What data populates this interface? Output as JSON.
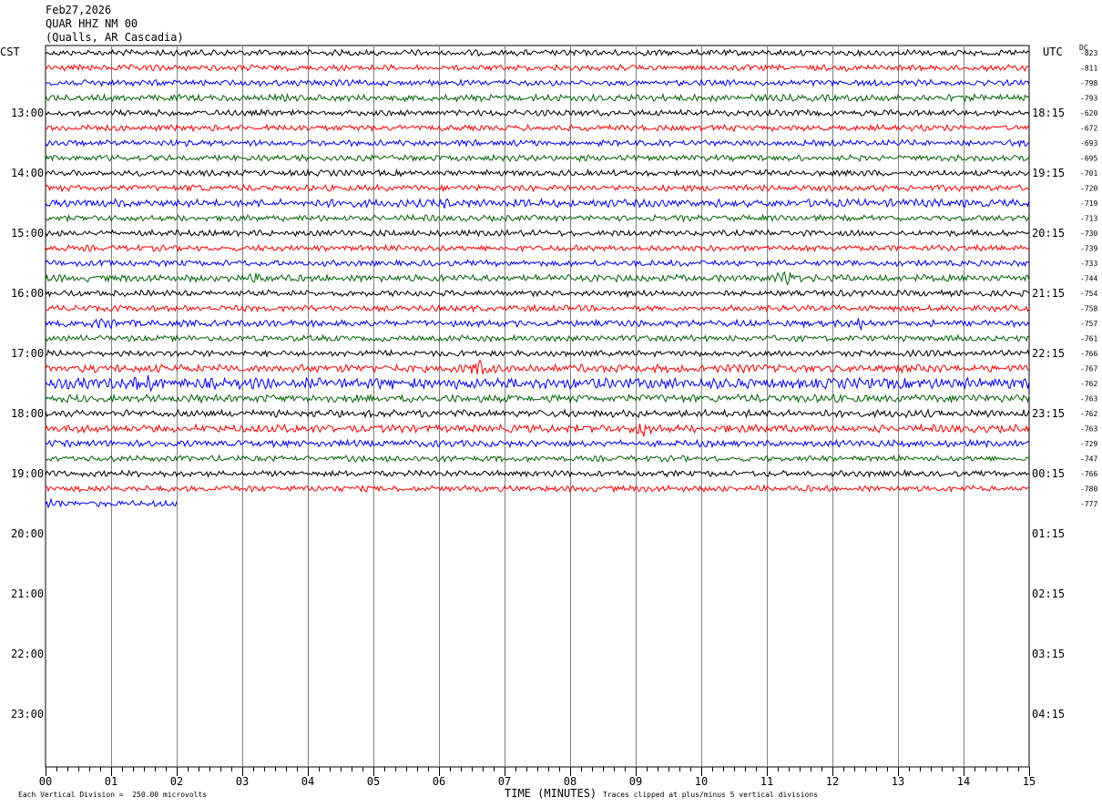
{
  "header": {
    "date": "Feb27,2026",
    "station": "QUAR HHZ NM 00",
    "location": "(Qualls, AR Cascadia)"
  },
  "left_timezone": "CST",
  "right_timezone": "UTC",
  "dc_label": "DC",
  "chart_data": {
    "type": "line",
    "title": "",
    "xlabel": "TIME (MINUTES)",
    "xlim": [
      0,
      15
    ],
    "x_ticks": [
      "00",
      "01",
      "02",
      "03",
      "04",
      "05",
      "06",
      "07",
      "08",
      "09",
      "10",
      "11",
      "12",
      "13",
      "14",
      "15"
    ],
    "left_hour_labels": [
      "13:00",
      "14:00",
      "15:00",
      "16:00",
      "17:00",
      "18:00",
      "19:00",
      "20:00",
      "21:00",
      "22:00",
      "23:00"
    ],
    "right_hour_labels": [
      "18:15",
      "19:15",
      "20:15",
      "21:15",
      "22:15",
      "23:15",
      "00:15",
      "01:15",
      "02:15",
      "03:15",
      "04:15"
    ],
    "first_left_label_row": 4,
    "rows_per_hour": 4,
    "total_rows": 48,
    "trace_colors": [
      "#000000",
      "#ff0000",
      "#0000ff",
      "#006400"
    ],
    "dc_offsets": [
      "-823",
      "-811",
      "-798",
      "-793",
      "-620",
      "-672",
      "-693",
      "-695",
      "-701",
      "-720",
      "-719",
      "-713",
      "-730",
      "-739",
      "-733",
      "-744",
      "-754",
      "-758",
      "-757",
      "-761",
      "-766",
      "-767",
      "-762",
      "-763",
      "-762",
      "-763",
      "-729",
      "-747",
      "-766",
      "-780",
      "-777"
    ],
    "trace_amplitudes": [
      1.0,
      1.0,
      1.0,
      1.1,
      1.0,
      1.0,
      1.0,
      1.0,
      1.0,
      1.0,
      1.3,
      1.0,
      1.0,
      1.0,
      1.0,
      1.2,
      1.0,
      1.0,
      1.1,
      1.0,
      1.0,
      1.3,
      1.8,
      1.3,
      1.2,
      1.3,
      1.1,
      1.0,
      1.0,
      1.0,
      1.0
    ],
    "last_trace_end_minute": 2.0,
    "events": [
      {
        "row": 14,
        "minute": 0.9,
        "amp": 1.5
      },
      {
        "row": 15,
        "minute": 3.3,
        "amp": 1.8
      },
      {
        "row": 15,
        "minute": 11.3,
        "amp": 2.2
      },
      {
        "row": 9,
        "minute": 2.3,
        "amp": 1.5
      },
      {
        "row": 10,
        "minute": 6.1,
        "amp": 1.8
      },
      {
        "row": 18,
        "minute": 0.9,
        "amp": 2.0
      },
      {
        "row": 18,
        "minute": 12.4,
        "amp": 1.8
      },
      {
        "row": 21,
        "minute": 6.6,
        "amp": 3.0
      },
      {
        "row": 22,
        "minute": 1.5,
        "amp": 2.0
      },
      {
        "row": 25,
        "minute": 9.1,
        "amp": 2.2
      },
      {
        "row": 30,
        "minute": 0.1,
        "amp": 1.6
      }
    ]
  },
  "footer": {
    "division_note": "Each Vertical Division =  250.00 microvolts",
    "clip_note": "Traces clipped at plus/minus 5 vertical divisions"
  }
}
